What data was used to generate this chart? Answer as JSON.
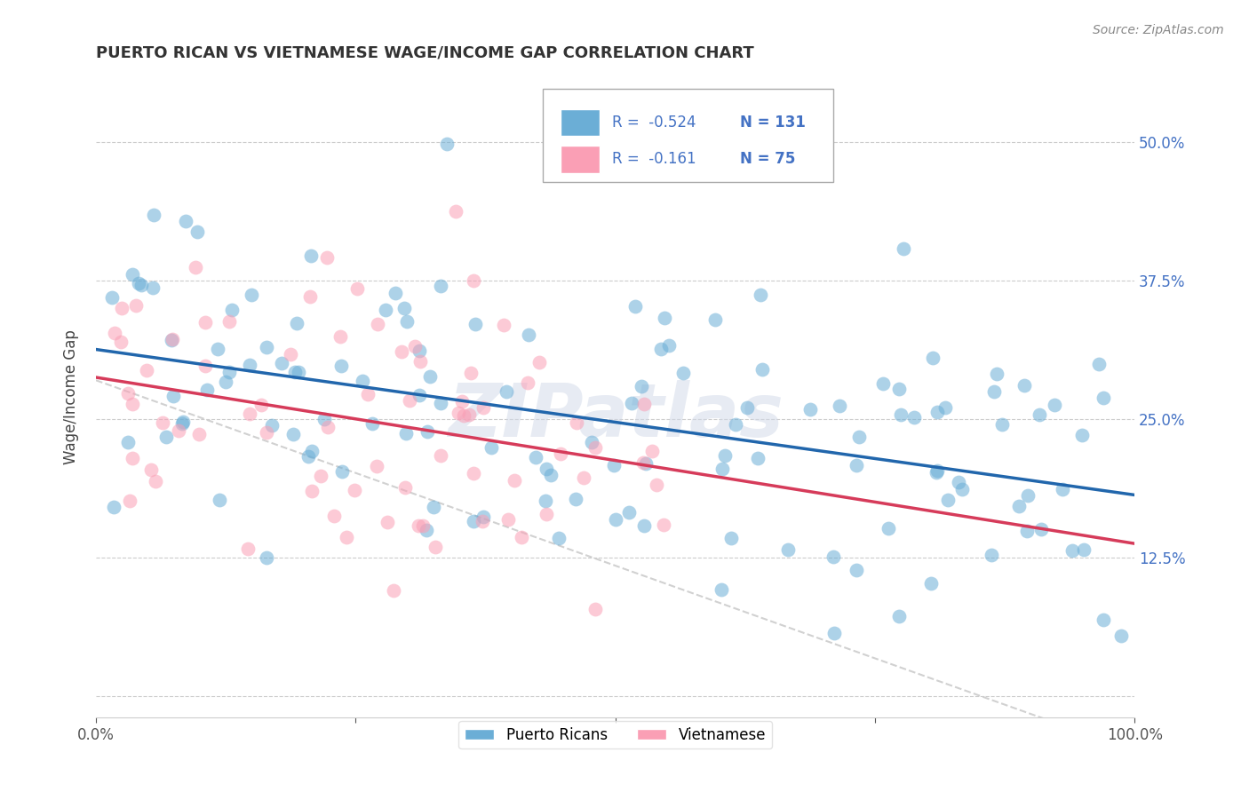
{
  "title": "PUERTO RICAN VS VIETNAMESE WAGE/INCOME GAP CORRELATION CHART",
  "source": "Source: ZipAtlas.com",
  "ylabel": "Wage/Income Gap",
  "yticks": [
    0.0,
    0.125,
    0.25,
    0.375,
    0.5
  ],
  "ytick_labels": [
    "",
    "12.5%",
    "25.0%",
    "37.5%",
    "50.0%"
  ],
  "xlim": [
    0.0,
    1.0
  ],
  "ylim": [
    -0.02,
    0.56
  ],
  "watermark": "ZIPatlas",
  "legend_blue_label": "Puerto Ricans",
  "legend_pink_label": "Vietnamese",
  "blue_scatter_color": "#6baed6",
  "pink_scatter_color": "#fa9fb5",
  "blue_line_color": "#2166ac",
  "pink_line_color": "#d63b5a",
  "dashed_line_color": "#cccccc",
  "blue_r": -0.524,
  "blue_n": 131,
  "pink_r": -0.161,
  "pink_n": 75
}
